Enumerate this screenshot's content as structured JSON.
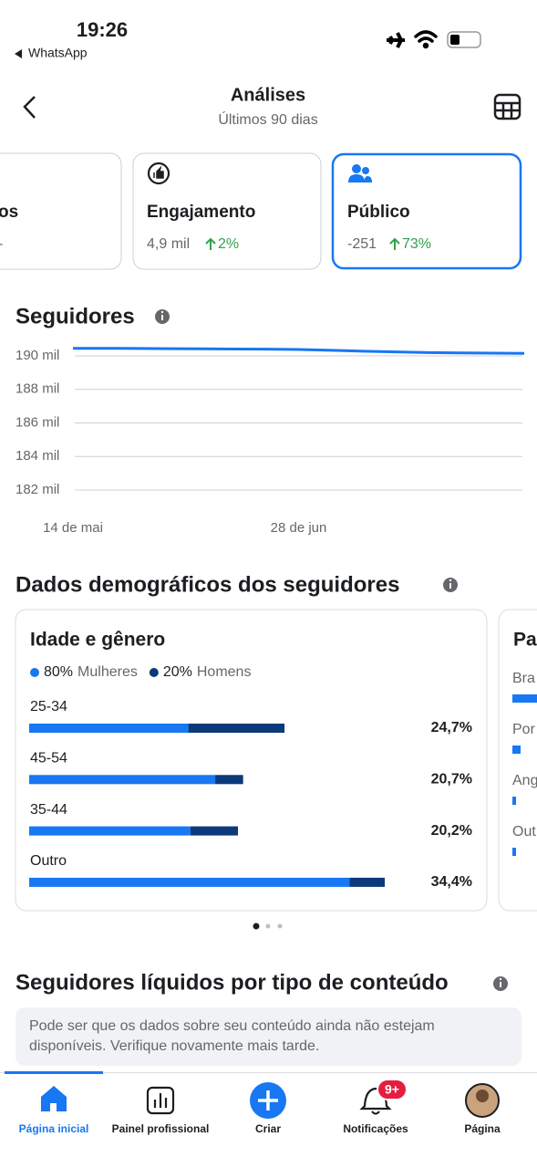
{
  "status_bar": {
    "time": "19:26",
    "back_app": "WhatsApp"
  },
  "header": {
    "title": "Análises",
    "subtitle": "Últimos 90 dias"
  },
  "metric_cards": [
    {
      "title": "os",
      "value": "-"
    },
    {
      "title": "Engajamento",
      "value": "4,9 mil",
      "change": "2%"
    },
    {
      "title": "Público",
      "value": "-251",
      "change": "73%"
    }
  ],
  "followers_chart": {
    "type": "line",
    "title": "Seguidores",
    "categories": [
      "14 de mai",
      null,
      null,
      null,
      null,
      null,
      null,
      "28 de jun",
      null,
      null,
      null,
      null,
      null,
      null,
      null
    ],
    "values": [
      190.45,
      190.45,
      190.44,
      190.43,
      190.42,
      190.41,
      190.4,
      190.38,
      190.33,
      190.28,
      190.24,
      190.2,
      190.18,
      190.16,
      190.15
    ],
    "color": "#1877f2",
    "ylim": [
      182,
      190.6
    ],
    "yticks": [
      {
        "value": 182,
        "label": "182 mil"
      },
      {
        "value": 184,
        "label": "184 mil"
      },
      {
        "value": 186,
        "label": "186 mil"
      },
      {
        "value": 188,
        "label": "188 mil"
      },
      {
        "value": 190,
        "label": "190 mil"
      }
    ],
    "grid": true
  },
  "demographics": {
    "title": "Dados demográficos dos seguidores",
    "age_gender": {
      "type": "bar",
      "title": "Idade e gênero",
      "categories": [
        "25-34",
        "45-54",
        "35-44",
        "Outro"
      ],
      "values": [
        24.7,
        20.7,
        20.2,
        34.4
      ],
      "value_labels": [
        "24,7%",
        "20,7%",
        "20,2%",
        "34,4%"
      ],
      "series": [
        {
          "name": "Mulheres",
          "share": "80%",
          "color": "#1877f2",
          "values": [
            15.4,
            18.0,
            15.6,
            31.0
          ]
        },
        {
          "name": "Homens",
          "share": "20%",
          "color": "#0a3a7a",
          "values": [
            9.3,
            2.7,
            4.6,
            3.4
          ]
        }
      ]
    },
    "country_card": {
      "title": "Pa",
      "rows": [
        "Bra",
        "Por",
        "Ang",
        "Out"
      ]
    }
  },
  "net_followers": {
    "title": "Seguidores líquidos por tipo de conteúdo",
    "notice": "Pode ser que os dados sobre seu conteúdo ainda não estejam disponíveis. Verifique novamente mais tarde."
  },
  "tab_bar": {
    "items": [
      "Página inicial",
      "Painel profissional",
      "Criar",
      "Notificações",
      "Página"
    ],
    "badge": "9+"
  }
}
